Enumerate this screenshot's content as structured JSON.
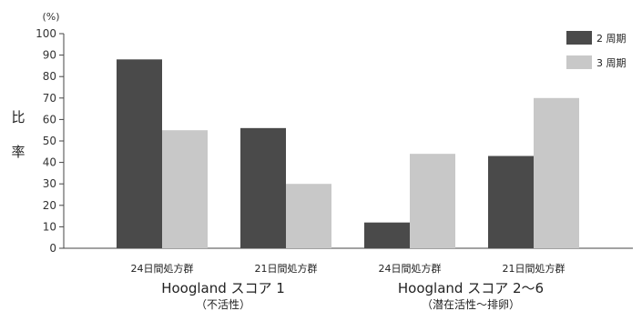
{
  "chart_data": {
    "type": "bar",
    "unit": "(%)",
    "ylabel": "比率",
    "ylim": [
      0,
      100
    ],
    "ytick_step": 10,
    "categories": [
      "24日間処方群",
      "21日間処方群",
      "24日間処方群",
      "21日間処方群"
    ],
    "groups": [
      {
        "title": "Hoogland スコア 1",
        "subtitle": "（不活性）"
      },
      {
        "title": "Hoogland スコア 2〜6",
        "subtitle": "（潜在活性〜排卵）"
      }
    ],
    "series": [
      {
        "name": "2 周期",
        "color": "#4a4a4a",
        "values": [
          88,
          56,
          12,
          43
        ]
      },
      {
        "name": "3 周期",
        "color": "#c8c8c8",
        "values": [
          55,
          30,
          44,
          70
        ]
      }
    ],
    "legend_position": "top-right",
    "grid": false
  }
}
